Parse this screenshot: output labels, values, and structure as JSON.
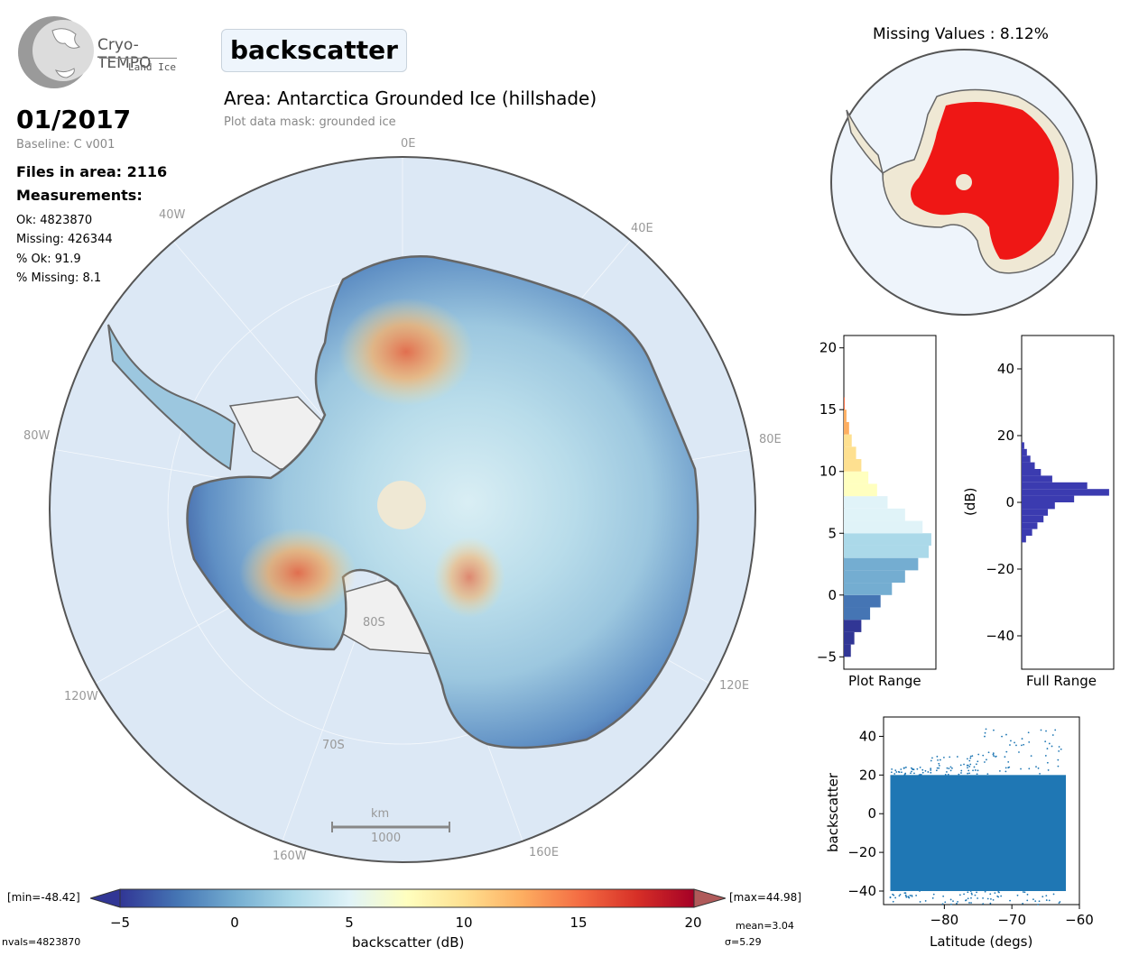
{
  "header": {
    "logo_title": "Cryo-TEMPO",
    "logo_subtitle": "Land Ice",
    "parameter": "backscatter",
    "area_title": "Area: Antarctica Grounded Ice (hillshade)",
    "mask_text": "Plot data mask: grounded ice"
  },
  "info": {
    "date": "01/2017",
    "baseline": "Baseline: C v001",
    "files": "Files in area: 2116",
    "measurements_heading": "Measurements:",
    "ok": "Ok: 4823870",
    "missing": "Missing: 426344",
    "pct_ok": "% Ok: 91.9",
    "pct_missing": "% Missing: 8.1"
  },
  "map": {
    "longitude_labels": [
      "0E",
      "40E",
      "80E",
      "120E",
      "160E",
      "160W",
      "120W",
      "80W",
      "40W"
    ],
    "latitude_labels": [
      "80S",
      "70S"
    ],
    "scale_unit": "km",
    "scale_value": "1000",
    "colors": {
      "ocean": "#dce8f5",
      "ice_shelf": "#f0f0f0",
      "coast": "#666666",
      "pole_hole": "#efe8d4"
    }
  },
  "colorbar": {
    "min_label": "[min=-48.42]",
    "max_label": "[max=44.98]",
    "ticks": [
      "−5",
      "0",
      "5",
      "10",
      "15",
      "20"
    ],
    "title": "backscatter (dB)",
    "nvals": "nvals=4823870",
    "mean": "mean=3.04",
    "sigma": "σ=5.29",
    "colors": [
      "#313695",
      "#4575b4",
      "#74add1",
      "#abd9e9",
      "#e0f3f8",
      "#ffffbf",
      "#fee090",
      "#fdae61",
      "#f46d43",
      "#d73027",
      "#a50026"
    ]
  },
  "missing_map": {
    "title": "Missing Values : 8.12%",
    "colors": {
      "missing": "#ee0000",
      "present": "#efe8d4"
    }
  },
  "chart_data": [
    {
      "type": "bar",
      "orientation": "horizontal",
      "xlabel": "Plot Range",
      "ylim": [
        -6,
        21
      ],
      "yticks": [
        "20",
        "15",
        "10",
        "5",
        "0",
        "−5"
      ],
      "bins": [
        -5,
        -4,
        -3,
        -2,
        -1,
        0,
        1,
        2,
        3,
        4,
        5,
        6,
        7,
        8,
        9,
        10,
        11,
        12,
        13,
        14,
        15
      ],
      "counts": [
        0.08,
        0.12,
        0.2,
        0.3,
        0.42,
        0.55,
        0.7,
        0.85,
        0.97,
        1.0,
        0.9,
        0.7,
        0.5,
        0.38,
        0.28,
        0.2,
        0.14,
        0.09,
        0.06,
        0.03,
        0.01
      ]
    },
    {
      "type": "bar",
      "orientation": "horizontal",
      "xlabel": "Full Range",
      "ylabel": "(dB)",
      "ylim": [
        -50,
        50
      ],
      "yticks": [
        "40",
        "20",
        "0",
        "−20",
        "−40"
      ],
      "bins": [
        -12,
        -10,
        -8,
        -6,
        -4,
        -2,
        0,
        2,
        4,
        6,
        8,
        10,
        12,
        14,
        16
      ],
      "counts": [
        0.05,
        0.12,
        0.18,
        0.25,
        0.3,
        0.38,
        0.6,
        1.0,
        0.75,
        0.35,
        0.22,
        0.15,
        0.1,
        0.06,
        0.03
      ],
      "bar_color": "#3b3bb0"
    },
    {
      "type": "scatter",
      "xlabel": "Latitude (degs)",
      "ylabel": "backscatter",
      "xlim": [
        -89,
        -60
      ],
      "ylim": [
        -47,
        50
      ],
      "xticks": [
        "−80",
        "−70",
        "−60"
      ],
      "yticks": [
        "40",
        "20",
        "0",
        "−20",
        "−40"
      ],
      "x_extent": [
        -88,
        -62
      ],
      "y_extent": [
        -48.42,
        44.98
      ],
      "color": "#1f77b4"
    }
  ]
}
